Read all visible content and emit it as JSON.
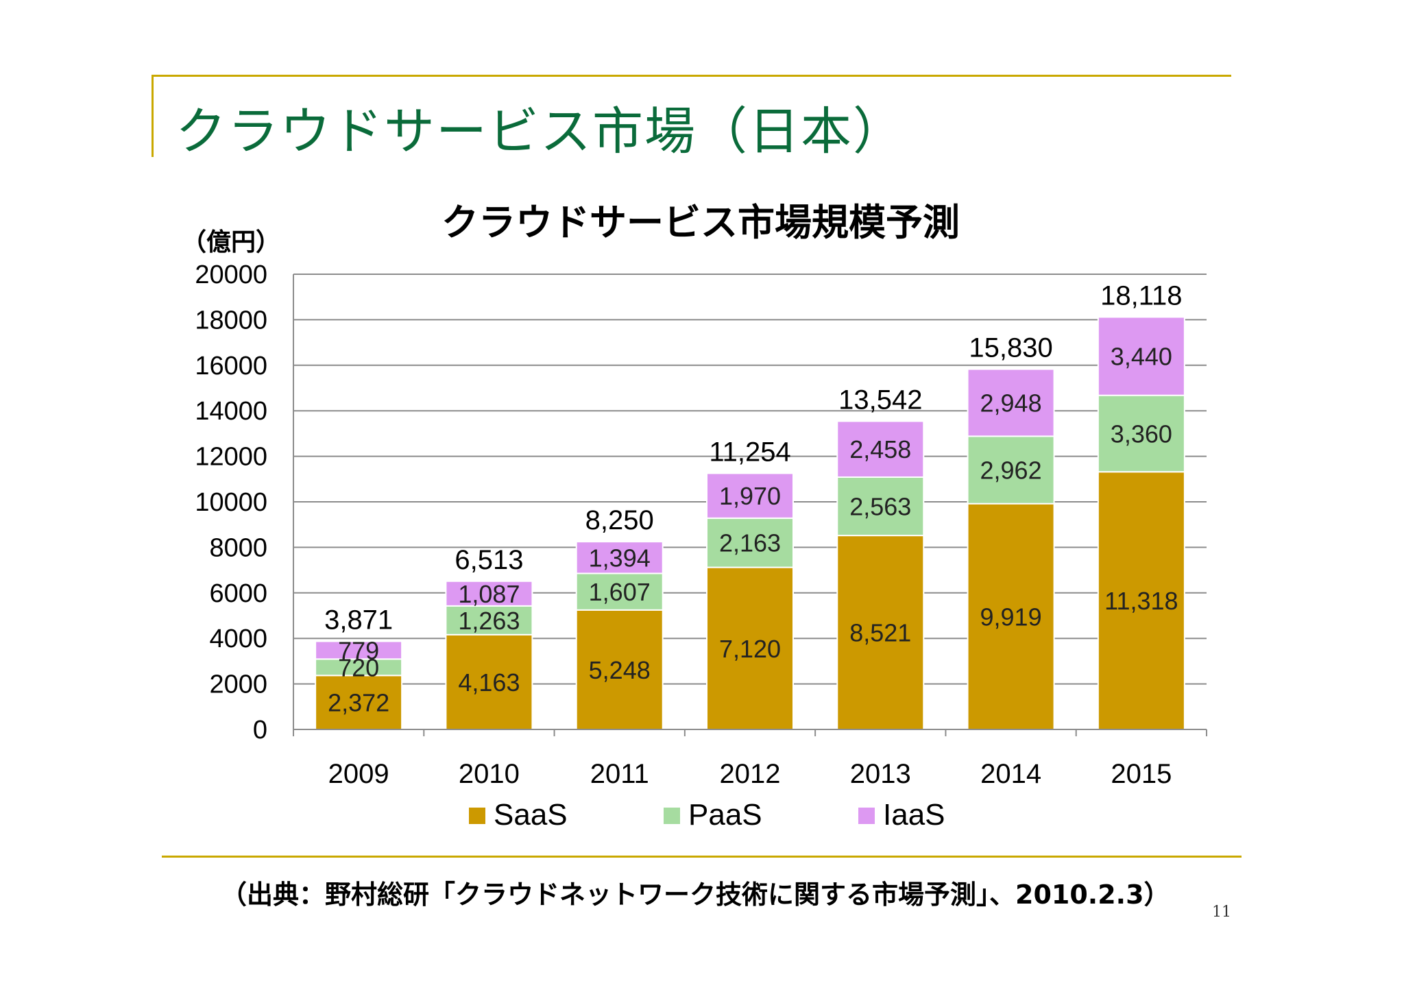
{
  "slide": {
    "title": "クラウドサービス市場（日本）",
    "source": "（出典：野村総研「クラウドネットワーク技術に関する市場予測」、2010.2.3）",
    "page_number": "11"
  },
  "colors": {
    "title": "#0a6b3a",
    "rule": "#c9a800",
    "saas": "#cc9900",
    "paas": "#a6dca0",
    "iaas": "#dd99f2",
    "grid": "#8c8c8c"
  },
  "chart_data": {
    "type": "bar",
    "stacked": true,
    "title": "クラウドサービス市場規模予測",
    "ylabel": "（億円）",
    "ylim": [
      0,
      20000
    ],
    "yticks": [
      "0",
      "2000",
      "4000",
      "6000",
      "8000",
      "10000",
      "12000",
      "14000",
      "16000",
      "18000",
      "20000"
    ],
    "grid": true,
    "legend_position": "bottom",
    "categories": [
      "2009",
      "2010",
      "2011",
      "2012",
      "2013",
      "2014",
      "2015"
    ],
    "series": [
      {
        "name": "SaaS",
        "color": "#cc9900",
        "values": [
          2372,
          4163,
          5248,
          7120,
          8521,
          9919,
          11318
        ],
        "labels": [
          "2,372",
          "4,163",
          "5,248",
          "7,120",
          "8,521",
          "9,919",
          "11,318"
        ]
      },
      {
        "name": "PaaS",
        "color": "#a6dca0",
        "values": [
          720,
          1263,
          1607,
          2163,
          2563,
          2962,
          3360
        ],
        "labels": [
          "720",
          "1,263",
          "1,607",
          "2,163",
          "2,563",
          "2,962",
          "3,360"
        ]
      },
      {
        "name": "IaaS",
        "color": "#dd99f2",
        "values": [
          779,
          1087,
          1394,
          1970,
          2458,
          2948,
          3440
        ],
        "labels": [
          "779",
          "1,087",
          "1,394",
          "1,970",
          "2,458",
          "2,948",
          "3,440"
        ]
      }
    ],
    "totals": [
      3871,
      6513,
      8250,
      11254,
      13542,
      15830,
      18118
    ],
    "total_labels": [
      "3,871",
      "6,513",
      "8,250",
      "11,254",
      "13,542",
      "15,830",
      "18,118"
    ]
  }
}
